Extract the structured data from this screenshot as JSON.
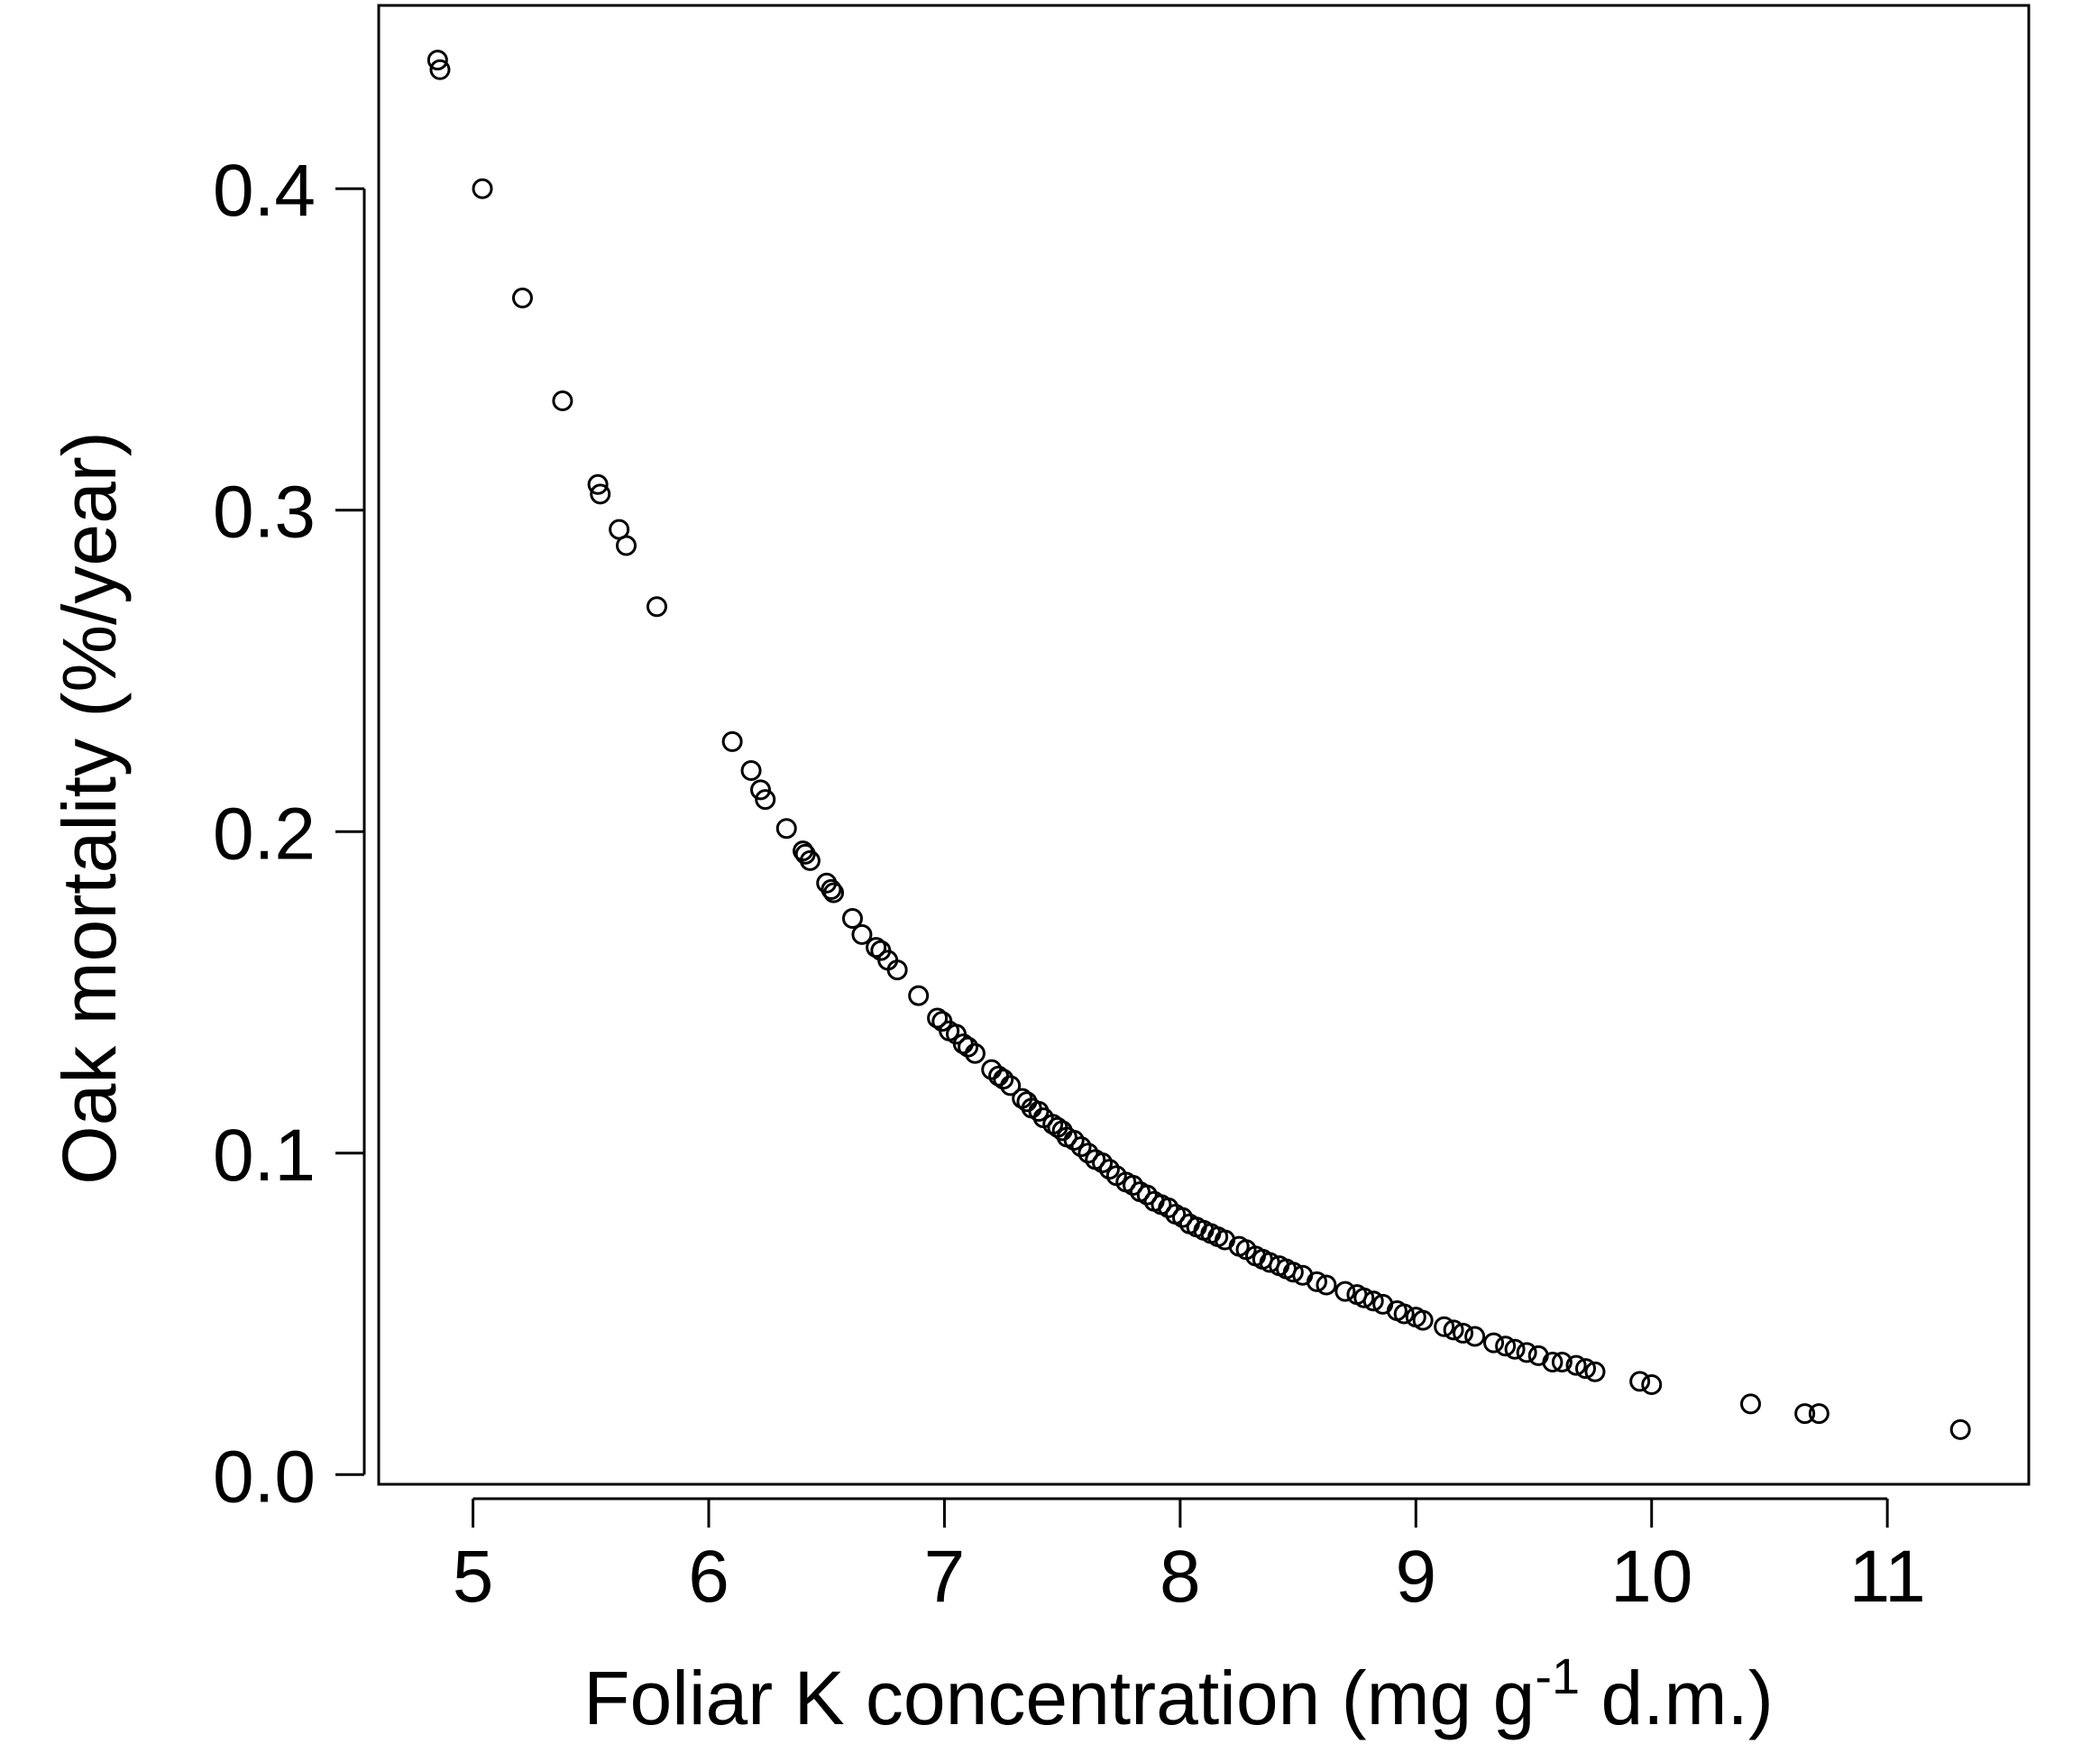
{
  "chart_data": {
    "type": "scatter",
    "title": "",
    "xlabel": "Foliar K concentration (mg g",
    "xlabel_superscript": "-1",
    "xlabel_suffix": " d.m.)",
    "ylabel": "Oak mortality (%/year)",
    "xlim": [
      4.6,
      11.6
    ],
    "ylim": [
      -0.003,
      0.457
    ],
    "xticks": [
      5,
      6,
      7,
      8,
      9,
      10,
      11
    ],
    "yticks": [
      0.0,
      0.1,
      0.2,
      0.3,
      0.4
    ],
    "xtick_labels": [
      "5",
      "6",
      "7",
      "8",
      "9",
      "10",
      "11"
    ],
    "ytick_labels": [
      "0.0",
      "0.1",
      "0.2",
      "0.3",
      "0.4"
    ],
    "grid": false,
    "marker": "open-circle",
    "series": [
      {
        "x": [
          4.85,
          4.86,
          5.04,
          5.21,
          5.38,
          5.53,
          5.54,
          5.62,
          5.65,
          5.78,
          6.1,
          6.18,
          6.22,
          6.24,
          6.33,
          6.4,
          6.41,
          6.43,
          6.5,
          6.52,
          6.53,
          6.61,
          6.65,
          6.71,
          6.73,
          6.76,
          6.8,
          6.89,
          6.97,
          6.99,
          7.02,
          7.05,
          7.08,
          7.1,
          7.13,
          7.2,
          7.23,
          7.25,
          7.28,
          7.33,
          7.35,
          7.37,
          7.4,
          7.42,
          7.46,
          7.48,
          7.5,
          7.52,
          7.55,
          7.58,
          7.61,
          7.64,
          7.67,
          7.7,
          7.73,
          7.77,
          7.8,
          7.83,
          7.86,
          7.89,
          7.92,
          7.95,
          7.98,
          8.01,
          8.04,
          8.07,
          8.1,
          8.13,
          8.16,
          8.19,
          8.25,
          8.28,
          8.32,
          8.35,
          8.38,
          8.42,
          8.45,
          8.48,
          8.52,
          8.58,
          8.62,
          8.7,
          8.75,
          8.78,
          8.82,
          8.86,
          8.92,
          8.95,
          9.0,
          9.03,
          9.12,
          9.16,
          9.2,
          9.25,
          9.33,
          9.38,
          9.42,
          9.47,
          9.52,
          9.58,
          9.62,
          9.68,
          9.72,
          9.76,
          9.95,
          10.0,
          10.42,
          10.65,
          10.71,
          11.31
        ],
        "y": [
          0.44,
          0.437,
          0.4,
          0.366,
          0.334,
          0.308,
          0.305,
          0.294,
          0.289,
          0.27,
          0.228,
          0.219,
          0.213,
          0.21,
          0.201,
          0.194,
          0.193,
          0.191,
          0.184,
          0.182,
          0.181,
          0.173,
          0.168,
          0.164,
          0.163,
          0.16,
          0.157,
          0.149,
          0.142,
          0.141,
          0.138,
          0.137,
          0.134,
          0.133,
          0.131,
          0.126,
          0.124,
          0.123,
          0.121,
          0.117,
          0.116,
          0.114,
          0.113,
          0.111,
          0.109,
          0.108,
          0.107,
          0.105,
          0.104,
          0.102,
          0.1,
          0.098,
          0.097,
          0.095,
          0.093,
          0.091,
          0.09,
          0.088,
          0.087,
          0.085,
          0.084,
          0.083,
          0.081,
          0.08,
          0.078,
          0.077,
          0.076,
          0.075,
          0.074,
          0.073,
          0.071,
          0.07,
          0.068,
          0.067,
          0.066,
          0.065,
          0.064,
          0.063,
          0.062,
          0.06,
          0.059,
          0.057,
          0.056,
          0.055,
          0.054,
          0.053,
          0.051,
          0.05,
          0.049,
          0.048,
          0.046,
          0.045,
          0.044,
          0.043,
          0.041,
          0.04,
          0.039,
          0.038,
          0.037,
          0.035,
          0.035,
          0.034,
          0.033,
          0.032,
          0.029,
          0.028,
          0.022,
          0.019,
          0.019,
          0.014
        ]
      }
    ]
  }
}
